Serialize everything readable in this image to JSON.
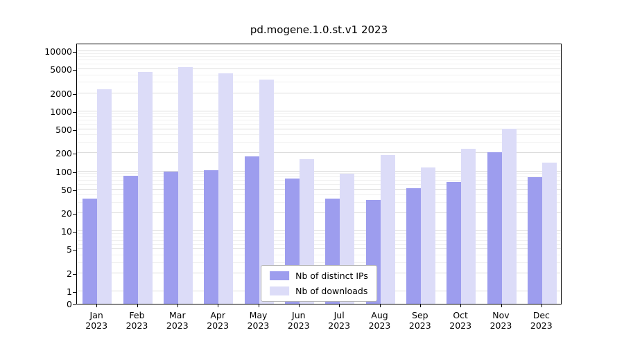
{
  "chart_data": {
    "type": "bar",
    "title": "pd.mogene.1.0.st.v1 2023",
    "xlabel": "",
    "ylabel": "",
    "scale": "log (symlog-style, axis starts at 0)",
    "grid": true,
    "legend_position": "lower center inside plot",
    "year": "2023",
    "categories": [
      "Jan",
      "Feb",
      "Mar",
      "Apr",
      "May",
      "Jun",
      "Jul",
      "Aug",
      "Sep",
      "Oct",
      "Nov",
      "Dec"
    ],
    "yticks": [
      0,
      1,
      2,
      5,
      10,
      20,
      50,
      100,
      200,
      500,
      1000,
      2000,
      5000,
      10000
    ],
    "ylim": [
      0,
      15000
    ],
    "series": [
      {
        "name": "Nb of distinct IPs",
        "color": "#9d9dee",
        "values": [
          35,
          85,
          100,
          103,
          178,
          75,
          35,
          33,
          52,
          66,
          205,
          80
        ]
      },
      {
        "name": "Nb of downloads",
        "color": "#dcdcf8",
        "values": [
          2300,
          4500,
          5500,
          4300,
          3400,
          160,
          90,
          185,
          115,
          235,
          510,
          140
        ]
      }
    ]
  }
}
